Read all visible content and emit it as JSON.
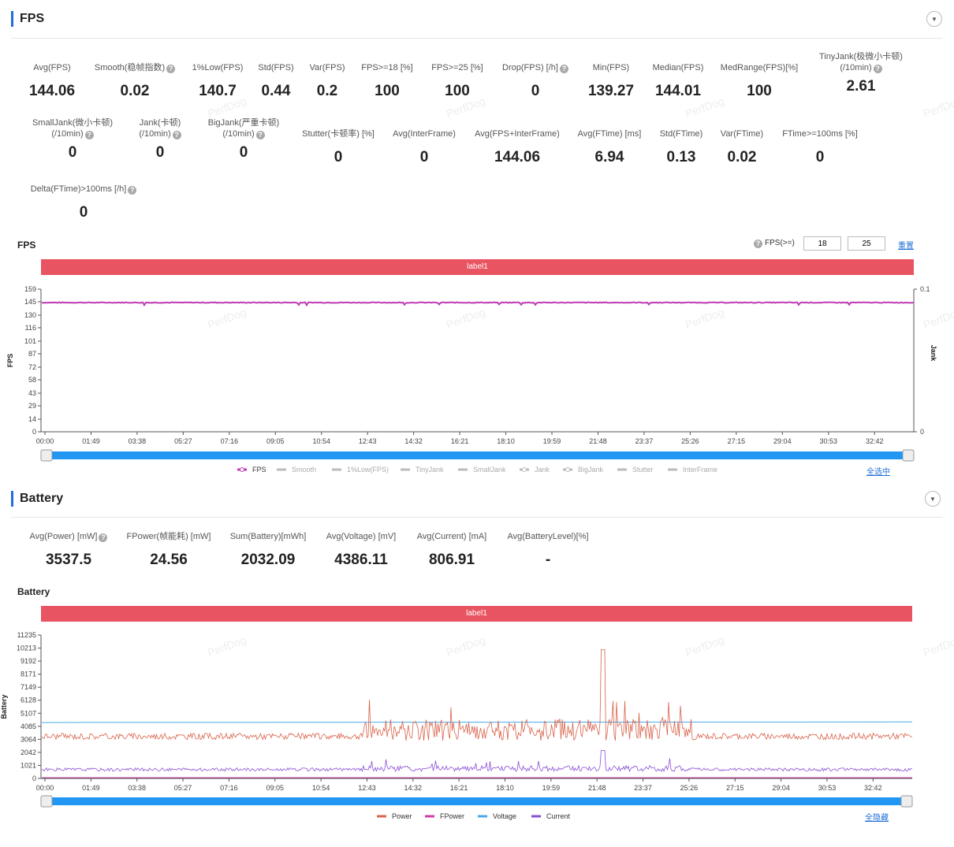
{
  "fps_section": {
    "title": "FPS",
    "metrics": [
      {
        "label": "Avg(FPS)",
        "value": "144.06",
        "help": false
      },
      {
        "label": "Smooth(稳帧指数)",
        "value": "0.02",
        "help": true
      },
      {
        "label": "1%Low(FPS)",
        "value": "140.7",
        "help": false
      },
      {
        "label": "Std(FPS)",
        "value": "0.44",
        "help": false
      },
      {
        "label": "Var(FPS)",
        "value": "0.2",
        "help": false
      },
      {
        "label": "FPS>=18 [%]",
        "value": "100",
        "help": false
      },
      {
        "label": "FPS>=25 [%]",
        "value": "100",
        "help": false
      },
      {
        "label": "Drop(FPS) [/h]",
        "value": "0",
        "help": true
      },
      {
        "label": "Min(FPS)",
        "value": "139.27",
        "help": false
      },
      {
        "label": "Median(FPS)",
        "value": "144.01",
        "help": false
      },
      {
        "label": "MedRange(FPS)[%]",
        "value": "100",
        "help": false
      },
      {
        "label": "TinyJank(极微小卡顿)",
        "label2": "(/10min)",
        "value": "2.61",
        "help": true
      },
      {
        "label": "SmallJank(微小卡顿)",
        "label2": "(/10min)",
        "value": "0",
        "help": true
      },
      {
        "label": "Jank(卡顿)",
        "label2": "(/10min)",
        "value": "0",
        "help": true
      },
      {
        "label": "BigJank(严重卡顿)",
        "label2": "(/10min)",
        "value": "0",
        "help": true
      },
      {
        "label": "Stutter(卡顿率) [%]",
        "value": "0",
        "help": false
      },
      {
        "label": "Avg(InterFrame)",
        "value": "0",
        "help": false
      },
      {
        "label": "Avg(FPS+InterFrame)",
        "value": "144.06",
        "help": false
      },
      {
        "label": "Avg(FTime) [ms]",
        "value": "6.94",
        "help": false
      },
      {
        "label": "Std(FTime)",
        "value": "0.13",
        "help": false
      },
      {
        "label": "Var(FTime)",
        "value": "0.02",
        "help": false
      },
      {
        "label": "FTime>=100ms [%]",
        "value": "0",
        "help": false
      },
      {
        "label": "Delta(FTime)>100ms [/h]",
        "value": "0",
        "help": true
      }
    ],
    "chart_title": "FPS",
    "threshold_label": "FPS(>=)",
    "threshold_1": "18",
    "threshold_2": "25",
    "reset_label": "重置",
    "select_all_label": "全选中",
    "label_bar": "label1"
  },
  "battery_section": {
    "title": "Battery",
    "metrics": [
      {
        "label": "Avg(Power) [mW]",
        "value": "3537.5",
        "help": true
      },
      {
        "label": "FPower(帧能耗) [mW]",
        "value": "24.56",
        "help": false
      },
      {
        "label": "Sum(Battery)[mWh]",
        "value": "2032.09",
        "help": false
      },
      {
        "label": "Avg(Voltage) [mV]",
        "value": "4386.11",
        "help": false
      },
      {
        "label": "Avg(Current) [mA]",
        "value": "806.91",
        "help": false
      },
      {
        "label": "Avg(BatteryLevel)[%]",
        "value": "-",
        "help": false
      }
    ],
    "chart_title": "Battery",
    "hide_all_label": "全隐藏",
    "label_bar": "label1"
  },
  "watermark": "PerfDog",
  "chart_data": [
    {
      "type": "line",
      "x_ticks": [
        "00:00",
        "01:49",
        "03:38",
        "05:27",
        "07:16",
        "09:05",
        "10:54",
        "12:43",
        "14:32",
        "16:21",
        "18:10",
        "19:59",
        "21:48",
        "23:37",
        "25:26",
        "27:15",
        "29:04",
        "30:53",
        "32:42"
      ],
      "xlabel": "",
      "ylabel": "FPS",
      "y_ticks": [
        0,
        14,
        29,
        43,
        58,
        72,
        87,
        101,
        116,
        130,
        145,
        159
      ],
      "ylim": [
        0,
        159
      ],
      "y2label": "Jank",
      "y2_ticks": [
        0,
        0.1
      ],
      "series": [
        {
          "name": "FPS",
          "color": "#c03bb5",
          "approx_value": 144.06,
          "visible": true
        },
        {
          "name": "Smooth",
          "color": "#b5b5b5",
          "visible": false
        },
        {
          "name": "1%Low(FPS)",
          "color": "#b5b5b5",
          "visible": false
        },
        {
          "name": "TinyJank",
          "color": "#b5b5b5",
          "visible": false
        },
        {
          "name": "SmallJank",
          "color": "#b5b5b5",
          "visible": false
        },
        {
          "name": "Jank",
          "color": "#b5b5b5",
          "visible": false
        },
        {
          "name": "BigJank",
          "color": "#b5b5b5",
          "visible": false
        },
        {
          "name": "Stutter",
          "color": "#b5b5b5",
          "visible": false
        },
        {
          "name": "InterFrame",
          "color": "#b5b5b5",
          "visible": false
        }
      ],
      "grid": false,
      "legend_position": "bottom"
    },
    {
      "type": "line",
      "x_ticks": [
        "00:00",
        "01:49",
        "03:38",
        "05:27",
        "07:16",
        "09:05",
        "10:54",
        "12:43",
        "14:32",
        "16:21",
        "18:10",
        "19:59",
        "21:48",
        "23:37",
        "25:26",
        "27:15",
        "29:04",
        "30:53",
        "32:42"
      ],
      "ylabel": "Battery",
      "y_ticks": [
        0,
        1021,
        2042,
        3064,
        4085,
        5107,
        6128,
        7149,
        8171,
        9192,
        10213,
        11235
      ],
      "ylim": [
        0,
        11235
      ],
      "series": [
        {
          "name": "Power",
          "color": "#d9634a",
          "approx_mean": 3537.5
        },
        {
          "name": "FPower",
          "color": "#d13ca9",
          "approx_mean": 24.56
        },
        {
          "name": "Voltage",
          "color": "#4aa8e8",
          "approx_mean": 4386.11
        },
        {
          "name": "Current",
          "color": "#8a4fd6",
          "approx_mean": 806.91
        }
      ],
      "grid": false,
      "legend_position": "bottom"
    }
  ]
}
